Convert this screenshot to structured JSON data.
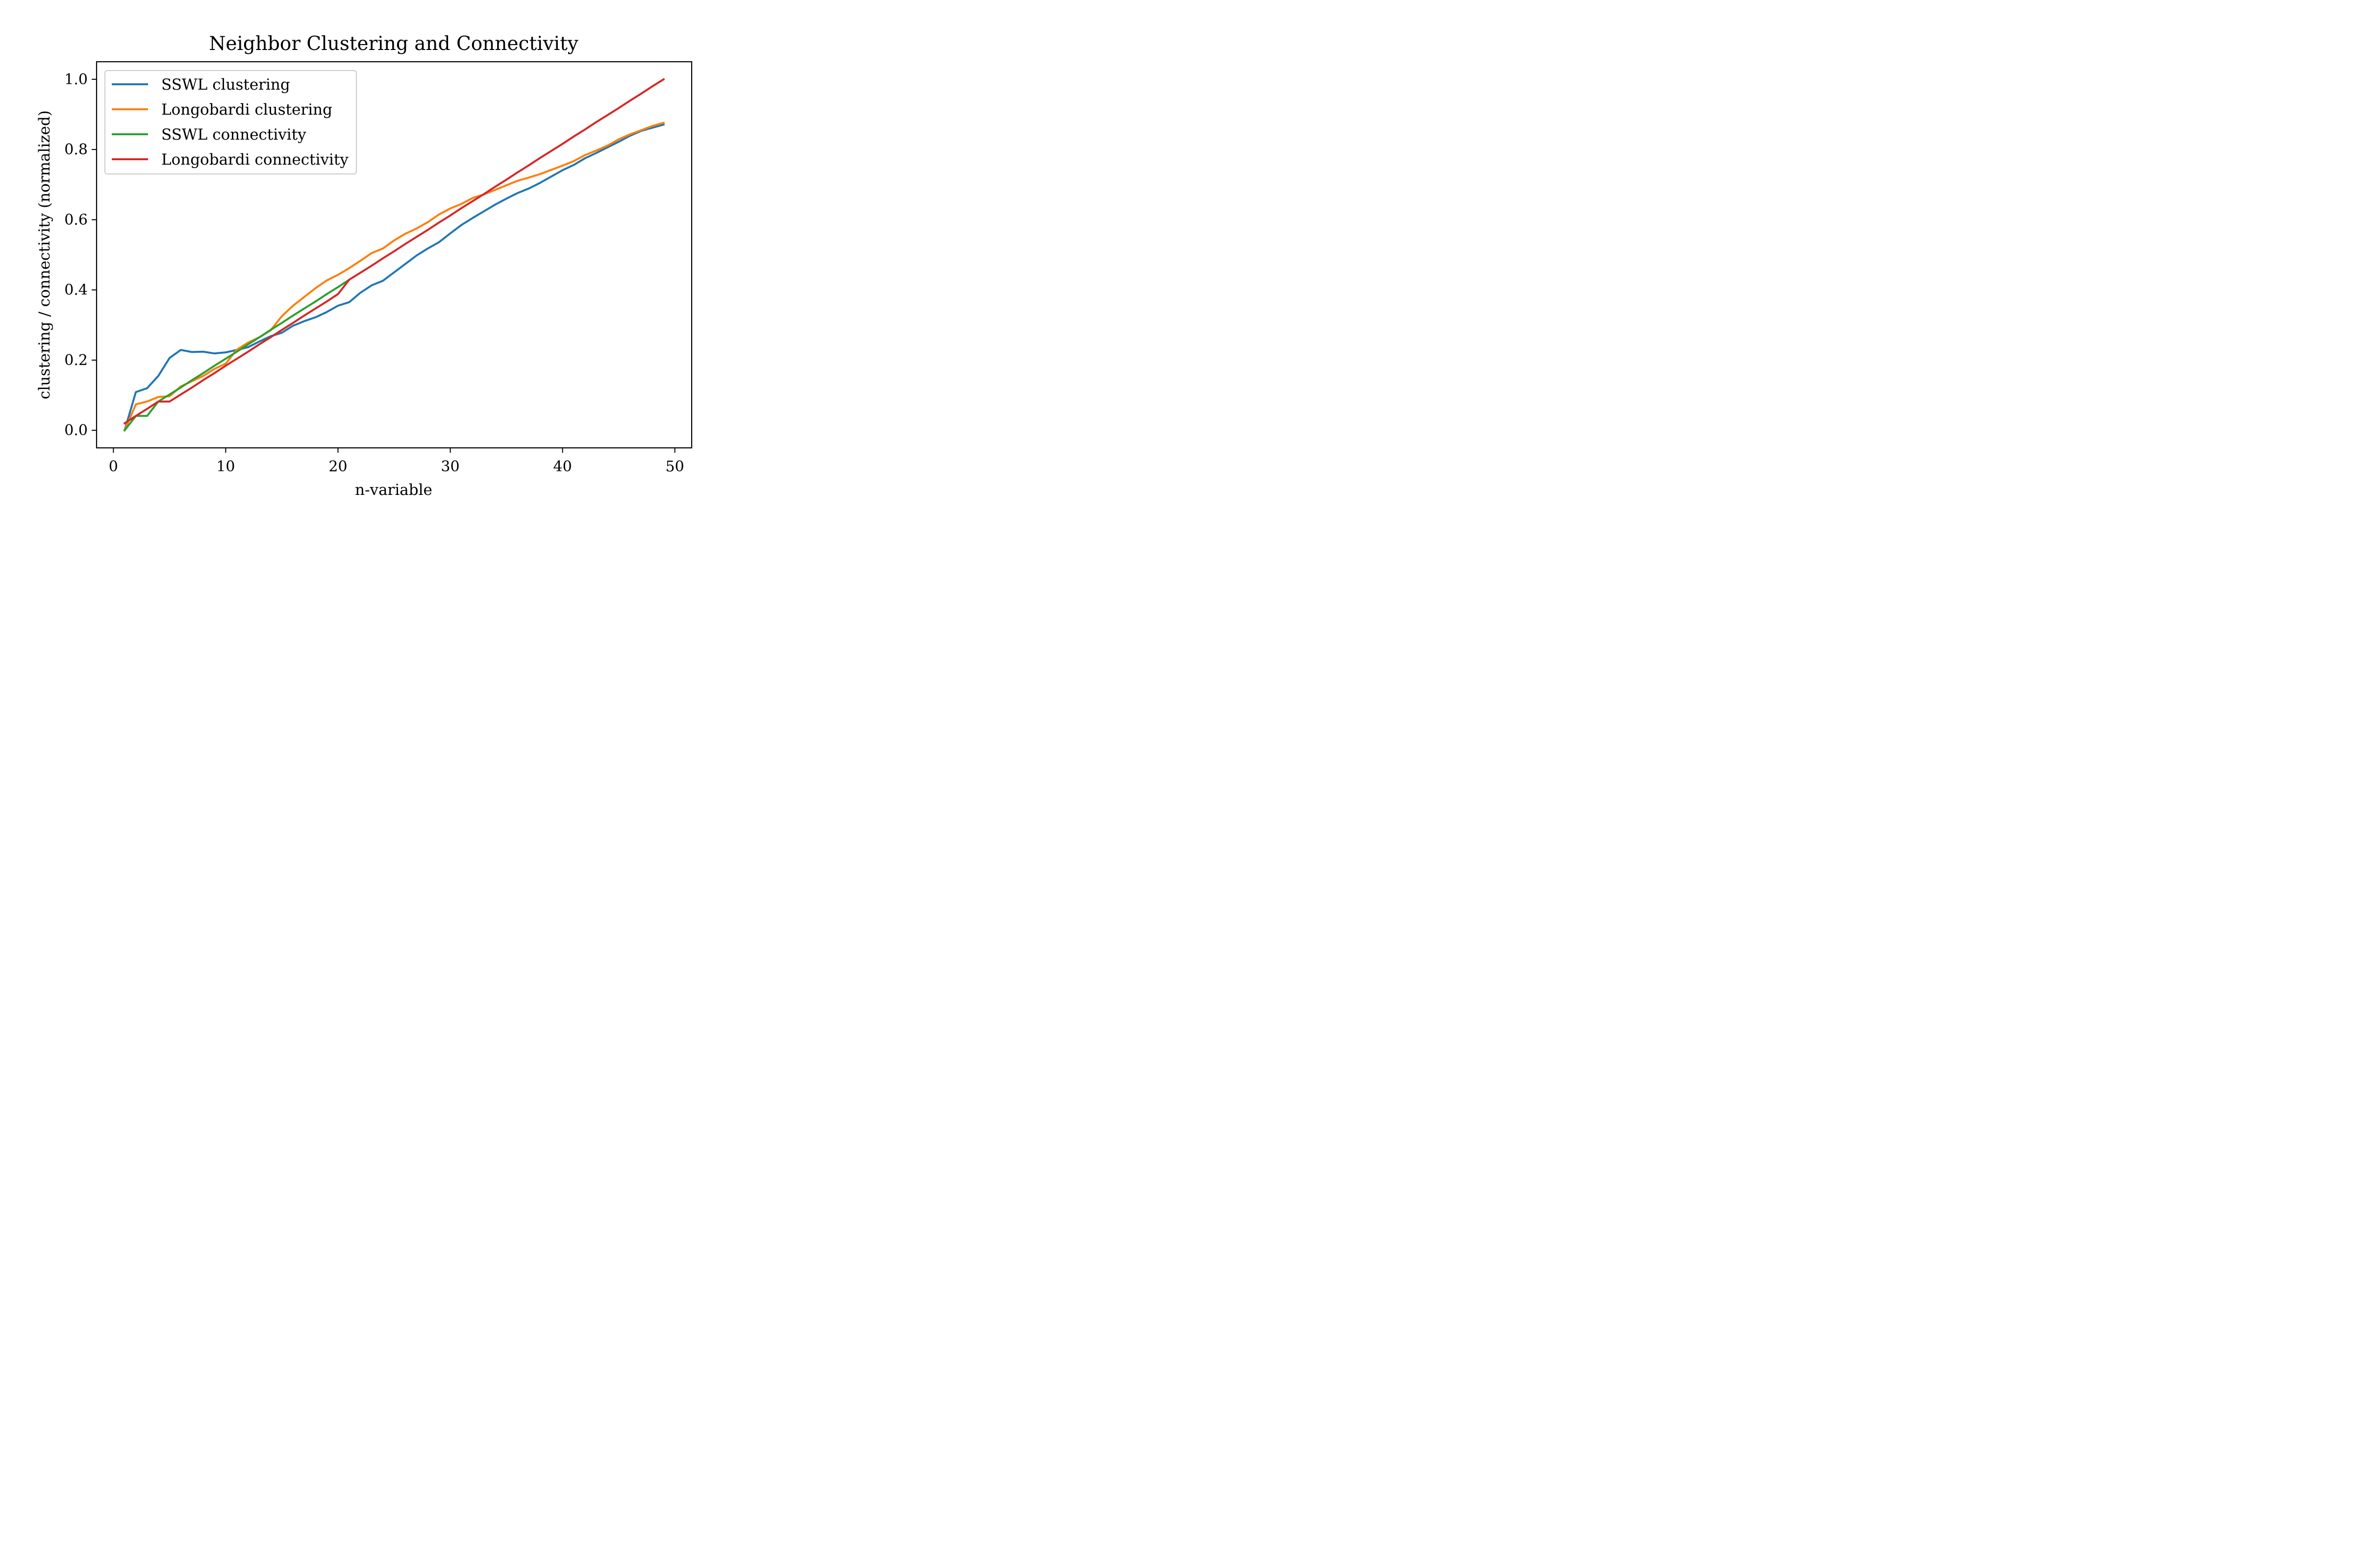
{
  "chart_data": {
    "type": "line",
    "title": "Neighbor Clustering and Connectivity",
    "xlabel": "n-variable",
    "ylabel": "clustering / connectivity (normalized)",
    "xlim": [
      -1.5,
      51.5
    ],
    "ylim": [
      -0.05,
      1.05
    ],
    "xticks": [
      0,
      10,
      20,
      30,
      40,
      50
    ],
    "xtick_labels": [
      "0",
      "10",
      "20",
      "30",
      "40",
      "50"
    ],
    "yticks": [
      0.0,
      0.2,
      0.4,
      0.6,
      0.8,
      1.0
    ],
    "ytick_labels": [
      "0.0",
      "0.2",
      "0.4",
      "0.6",
      "0.8",
      "1.0"
    ],
    "grid": false,
    "legend_position": "top-left",
    "series": [
      {
        "name": "SSWL clustering",
        "color": "#1f77b4",
        "x": [
          1,
          2,
          3,
          4,
          5,
          6,
          7,
          8,
          9,
          10,
          11,
          12,
          13,
          14,
          15,
          16,
          17,
          18,
          19,
          20,
          21,
          22,
          23,
          24,
          25,
          26,
          27,
          28,
          29,
          30,
          31,
          32,
          33,
          34,
          35,
          36,
          37,
          38,
          39,
          40,
          41,
          42,
          43,
          44,
          45,
          46,
          47,
          48,
          49
        ],
        "values": [
          0.0,
          0.109,
          0.12,
          0.155,
          0.206,
          0.229,
          0.223,
          0.224,
          0.219,
          0.222,
          0.229,
          0.237,
          0.253,
          0.268,
          0.278,
          0.298,
          0.311,
          0.322,
          0.337,
          0.355,
          0.365,
          0.392,
          0.413,
          0.426,
          0.45,
          0.474,
          0.498,
          0.518,
          0.536,
          0.561,
          0.585,
          0.605,
          0.624,
          0.643,
          0.66,
          0.676,
          0.689,
          0.705,
          0.723,
          0.741,
          0.756,
          0.775,
          0.79,
          0.806,
          0.822,
          0.839,
          0.853,
          0.862,
          0.871
        ]
      },
      {
        "name": "Longobardi clustering",
        "color": "#ff7f0e",
        "x": [
          1,
          2,
          3,
          4,
          5,
          6,
          7,
          8,
          9,
          10,
          11,
          12,
          13,
          14,
          15,
          16,
          17,
          18,
          19,
          20,
          21,
          22,
          23,
          24,
          25,
          26,
          27,
          28,
          29,
          30,
          31,
          32,
          33,
          34,
          35,
          36,
          37,
          38,
          39,
          40,
          41,
          42,
          43,
          44,
          45,
          46,
          47,
          48,
          49
        ],
        "values": [
          0.0,
          0.074,
          0.082,
          0.095,
          0.097,
          0.125,
          0.14,
          0.155,
          0.175,
          0.19,
          0.23,
          0.25,
          0.265,
          0.285,
          0.325,
          0.355,
          0.38,
          0.405,
          0.427,
          0.443,
          0.462,
          0.483,
          0.505,
          0.518,
          0.541,
          0.56,
          0.575,
          0.593,
          0.615,
          0.632,
          0.645,
          0.662,
          0.672,
          0.685,
          0.698,
          0.711,
          0.72,
          0.73,
          0.742,
          0.754,
          0.767,
          0.784,
          0.797,
          0.811,
          0.829,
          0.843,
          0.855,
          0.867,
          0.876
        ]
      },
      {
        "name": "SSWL connectivity",
        "color": "#2ca02c",
        "x": [
          1,
          2,
          3,
          4,
          5,
          6,
          7,
          8,
          9,
          10,
          11,
          12,
          13,
          14,
          15,
          16,
          17,
          18,
          19,
          20,
          21
        ],
        "values": [
          0.0,
          0.041,
          0.041,
          0.082,
          0.102,
          0.122,
          0.143,
          0.163,
          0.184,
          0.204,
          0.224,
          0.245,
          0.265,
          0.286,
          0.306,
          0.327,
          0.347,
          0.367,
          0.388,
          0.408,
          0.429
        ]
      },
      {
        "name": "Longobardi connectivity",
        "color": "#d62728",
        "x": [
          1,
          2,
          3,
          4,
          5,
          6,
          7,
          8,
          9,
          10,
          11,
          12,
          13,
          14,
          15,
          16,
          17,
          18,
          19,
          20,
          21,
          22,
          23,
          24,
          25,
          26,
          27,
          28,
          29,
          30,
          31,
          32,
          33,
          34,
          35,
          36,
          37,
          38,
          39,
          40,
          41,
          42,
          43,
          44,
          45,
          46,
          47,
          48,
          49
        ],
        "values": [
          0.02,
          0.041,
          0.061,
          0.082,
          0.082,
          0.102,
          0.122,
          0.143,
          0.163,
          0.184,
          0.204,
          0.224,
          0.245,
          0.265,
          0.286,
          0.306,
          0.327,
          0.347,
          0.367,
          0.388,
          0.429,
          0.449,
          0.469,
          0.49,
          0.51,
          0.531,
          0.551,
          0.571,
          0.592,
          0.612,
          0.633,
          0.653,
          0.673,
          0.694,
          0.714,
          0.735,
          0.755,
          0.776,
          0.796,
          0.816,
          0.837,
          0.857,
          0.878,
          0.898,
          0.918,
          0.939,
          0.959,
          0.98,
          1.0
        ]
      }
    ]
  }
}
